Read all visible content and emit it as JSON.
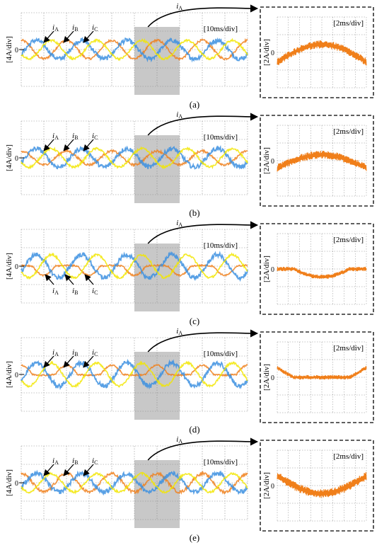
{
  "figure": {
    "colors": {
      "phase_a": "#f07f1a",
      "phase_b": "#3b8fe0",
      "phase_c": "#f2e600",
      "highlight": "#c8c8c8",
      "grid": "#8c8c8c",
      "frame": "#000000"
    },
    "icons": {
      "zoom_callout": "curved-arrow-icon",
      "phase_pointer": "arrow-icon"
    }
  },
  "chart_data": [
    {
      "type": "line",
      "panel_label": "(a)",
      "overview": {
        "ylabel": "[4A/div]",
        "xscale_label": "[10ms/div]",
        "zero_label": "0",
        "x_units": "ms",
        "xlim": [
          0,
          100
        ],
        "ylim": [
          -16,
          16
        ],
        "highlight_window": [
          50,
          70
        ],
        "phase_labels": [
          "i_A",
          "i_B",
          "i_C"
        ],
        "phase_label_position": "above",
        "series": [
          {
            "name": "iA",
            "waveform": "sine",
            "amplitude": 4,
            "frequency_hz": 50,
            "phase_deg": 90,
            "noise": 0.6
          },
          {
            "name": "iB",
            "waveform": "sine",
            "amplitude": 4,
            "frequency_hz": 50,
            "phase_deg": -30,
            "noise": 1.2
          },
          {
            "name": "iC",
            "waveform": "sine",
            "amplitude": 4,
            "frequency_hz": 50,
            "phase_deg": 210,
            "noise": 0.6
          }
        ]
      },
      "zoom": {
        "series_label": "i_A",
        "ylabel": "[2A/div]",
        "xscale_label": "[2ms/div]",
        "zero_label": "0",
        "x_units": "ms",
        "xlim": [
          0,
          20
        ],
        "ylim": [
          -8,
          8
        ],
        "waveform": "sine-half",
        "amplitude": 4,
        "offset": 0,
        "clip": "none",
        "ripple": 0.9
      }
    },
    {
      "type": "line",
      "panel_label": "(b)",
      "overview": {
        "ylabel": "[4A/div]",
        "xscale_label": "[10ms/div]",
        "zero_label": "0",
        "x_units": "ms",
        "xlim": [
          0,
          100
        ],
        "ylim": [
          -16,
          16
        ],
        "highlight_window": [
          50,
          70
        ],
        "phase_labels": [
          "i_A",
          "i_B",
          "i_C"
        ],
        "phase_label_position": "above",
        "series": [
          {
            "name": "iA",
            "waveform": "sine",
            "amplitude": 3,
            "frequency_hz": 50,
            "phase_deg": 90,
            "noise": 0.6
          },
          {
            "name": "iB",
            "waveform": "sine",
            "amplitude": 4,
            "frequency_hz": 50,
            "phase_deg": -30,
            "noise": 1.2
          },
          {
            "name": "iC",
            "waveform": "sine",
            "amplitude": 4,
            "frequency_hz": 50,
            "phase_deg": 210,
            "noise": 0.6
          }
        ]
      },
      "zoom": {
        "series_label": "i_A",
        "ylabel": "[2A/div]",
        "xscale_label": "[2ms/div]",
        "zero_label": "0",
        "x_units": "ms",
        "xlim": [
          0,
          20
        ],
        "ylim": [
          -8,
          8
        ],
        "waveform": "sine-half",
        "amplitude": 3,
        "offset": 0,
        "clip": "none",
        "ripple": 0.9
      }
    },
    {
      "type": "line",
      "panel_label": "(c)",
      "overview": {
        "ylabel": "[4A/div]",
        "xscale_label": "[10ms/div]",
        "zero_label": "0",
        "x_units": "ms",
        "xlim": [
          0,
          100
        ],
        "ylim": [
          -16,
          16
        ],
        "highlight_window": [
          50,
          70
        ],
        "phase_labels": [
          "i_A",
          "i_B",
          "i_C"
        ],
        "phase_label_position": "below",
        "series": [
          {
            "name": "iA",
            "waveform": "sine",
            "amplitude": 4,
            "frequency_hz": 50,
            "phase_deg": 90,
            "noise": 0.4,
            "clip": "positive"
          },
          {
            "name": "iB",
            "waveform": "sine",
            "amplitude": 5,
            "frequency_hz": 50,
            "phase_deg": -30,
            "noise": 1.2
          },
          {
            "name": "iC",
            "waveform": "sine",
            "amplitude": 5,
            "frequency_hz": 50,
            "phase_deg": 210,
            "noise": 0.6
          }
        ]
      },
      "zoom": {
        "series_label": "i_A",
        "ylabel": "[2A/div]",
        "xscale_label": "[2ms/div]",
        "zero_label": "0",
        "x_units": "ms",
        "xlim": [
          0,
          20
        ],
        "ylim": [
          -8,
          8
        ],
        "waveform": "sine-half",
        "amplitude": -4,
        "offset": 0,
        "clip": "positive",
        "ripple": 0.5
      }
    },
    {
      "type": "line",
      "panel_label": "(d)",
      "overview": {
        "ylabel": "[4A/div]",
        "xscale_label": "[10ms/div]",
        "zero_label": "0",
        "x_units": "ms",
        "xlim": [
          0,
          100
        ],
        "ylim": [
          -16,
          16
        ],
        "highlight_window": [
          50,
          70
        ],
        "phase_labels": [
          "i_A",
          "i_B",
          "i_C"
        ],
        "phase_label_position": "above",
        "series": [
          {
            "name": "iA",
            "waveform": "sine",
            "amplitude": 4,
            "frequency_hz": 50,
            "phase_deg": 90,
            "noise": 0.4,
            "clip": "negative"
          },
          {
            "name": "iB",
            "waveform": "sine",
            "amplitude": 5,
            "frequency_hz": 50,
            "phase_deg": -30,
            "noise": 1.2
          },
          {
            "name": "iC",
            "waveform": "sine",
            "amplitude": 5,
            "frequency_hz": 50,
            "phase_deg": 210,
            "noise": 0.6
          }
        ]
      },
      "zoom": {
        "series_label": "i_A",
        "ylabel": "[2A/div]",
        "xscale_label": "[2ms/div]",
        "zero_label": "0",
        "x_units": "ms",
        "xlim": [
          0,
          20
        ],
        "ylim": [
          -8,
          8
        ],
        "waveform": "sine-half",
        "amplitude": -4,
        "offset": 0,
        "clip": "negative",
        "ripple": 0.5
      }
    },
    {
      "type": "line",
      "panel_label": "(e)",
      "overview": {
        "ylabel": "[4A/div]",
        "xscale_label": "[10ms/div]",
        "zero_label": "0",
        "x_units": "ms",
        "xlim": [
          0,
          100
        ],
        "ylim": [
          -16,
          16
        ],
        "highlight_window": [
          50,
          70
        ],
        "phase_labels": [
          "i_A",
          "i_B",
          "i_C"
        ],
        "phase_label_position": "above",
        "series": [
          {
            "name": "iA",
            "waveform": "sine",
            "amplitude": 4,
            "frequency_hz": 50,
            "phase_deg": 90,
            "noise": 0.8
          },
          {
            "name": "iB",
            "waveform": "sine",
            "amplitude": 4,
            "frequency_hz": 50,
            "phase_deg": -30,
            "noise": 1.2
          },
          {
            "name": "iC",
            "waveform": "sine",
            "amplitude": 4,
            "frequency_hz": 50,
            "phase_deg": 210,
            "noise": 0.6
          }
        ]
      },
      "zoom": {
        "series_label": "i_A",
        "ylabel": "[2A/div]",
        "xscale_label": "[2ms/div]",
        "zero_label": "0",
        "x_units": "ms",
        "xlim": [
          0,
          20
        ],
        "ylim": [
          -8,
          8
        ],
        "waveform": "sine-half",
        "amplitude": -4,
        "offset": 0,
        "clip": "none",
        "ripple": 1.0
      }
    }
  ]
}
